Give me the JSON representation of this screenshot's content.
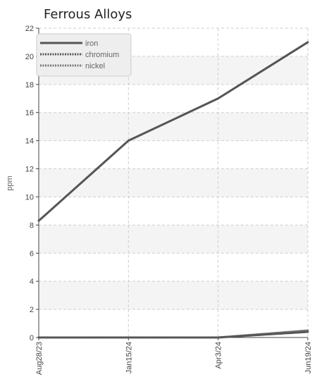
{
  "chart_data": {
    "type": "line",
    "title": "Ferrous Alloys",
    "ylabel": "ppm",
    "xlabel": "",
    "x": [
      "Aug28/23",
      "Jan15/24",
      "Apr3/24",
      "Jun19/24"
    ],
    "ylim": [
      0,
      22
    ],
    "yticks": [
      0,
      2,
      4,
      6,
      8,
      10,
      12,
      14,
      16,
      18,
      20,
      22
    ],
    "grid": true,
    "legend_position": "top-left",
    "series": [
      {
        "name": "iron",
        "values": [
          8.3,
          14,
          17,
          21
        ],
        "color": "#555555",
        "style": "solid"
      },
      {
        "name": "chromium",
        "values": [
          0,
          0,
          0,
          0.4
        ],
        "color": "#555555",
        "style": "dotted"
      },
      {
        "name": "nickel",
        "values": [
          0,
          0,
          0,
          0.5
        ],
        "color": "#777777",
        "style": "dotted"
      }
    ]
  }
}
